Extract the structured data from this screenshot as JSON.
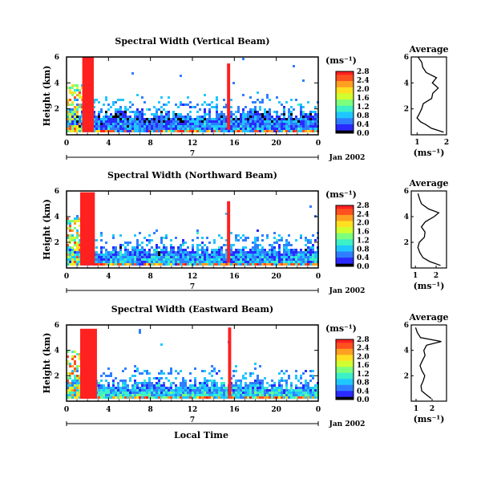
{
  "panels": [
    {
      "title": "Spectral Width (Vertical Beam)",
      "ylabel": "Height (km)",
      "yticks": [
        "2",
        "4",
        "6"
      ],
      "xticks": [
        "0",
        "4",
        "8",
        "12",
        "16",
        "20",
        "0"
      ],
      "day_label": "7",
      "date_label": "Jan 2002",
      "colorbar_unit": "(ms⁻¹)",
      "colorbar_ticks": [
        "0.0",
        "0.4",
        "0.8",
        "1.2",
        "1.6",
        "2.0",
        "2.4",
        "2.8"
      ],
      "avg_title": "Average",
      "avg_xticks": [
        "1",
        "2"
      ],
      "avg_yticks": [
        "2",
        "4",
        "6"
      ],
      "avg_xlabel": "(ms⁻¹)"
    },
    {
      "title": "Spectral Width (Northward Beam)",
      "ylabel": "Height (km)",
      "yticks": [
        "2",
        "4",
        "6"
      ],
      "xticks": [
        "0",
        "4",
        "8",
        "12",
        "16",
        "20",
        "0"
      ],
      "day_label": "7",
      "date_label": "Jan 2002",
      "colorbar_unit": "(ms⁻¹)",
      "colorbar_ticks": [
        "0.0",
        "0.4",
        "0.8",
        "1.2",
        "1.6",
        "2.0",
        "2.4",
        "2.8"
      ],
      "avg_title": "Average",
      "avg_xticks": [
        "1",
        "2"
      ],
      "avg_yticks": [
        "2",
        "4",
        "6"
      ],
      "avg_xlabel": "(ms⁻¹)"
    },
    {
      "title": "Spectral Width (Eastward Beam)",
      "ylabel": "Height (km)",
      "yticks": [
        "2",
        "4",
        "6"
      ],
      "xticks": [
        "0",
        "4",
        "8",
        "12",
        "16",
        "20",
        "0"
      ],
      "day_label": "7",
      "date_label": "Jan 2002",
      "colorbar_unit": "(ms⁻¹)",
      "colorbar_ticks": [
        "0.0",
        "0.4",
        "0.8",
        "1.2",
        "1.6",
        "2.0",
        "2.4",
        "2.8"
      ],
      "avg_title": "Average",
      "avg_xticks": [
        "1",
        "2"
      ],
      "avg_yticks": [
        "2",
        "4",
        "6"
      ],
      "avg_xlabel": "(ms⁻¹)"
    }
  ],
  "bottom_xlabel": "Local Time",
  "colors": {
    "scale": [
      "#000000",
      "#2a2aff",
      "#2f7fff",
      "#1ec8ff",
      "#3cf0c8",
      "#7cff7c",
      "#d0ff30",
      "#ffe020",
      "#ffa020",
      "#ff5020",
      "#ff2020"
    ]
  },
  "chart_data": [
    {
      "type": "heatmap",
      "title": "Spectral Width (Vertical Beam)",
      "xlabel": "Local Time",
      "ylabel": "Height (km)",
      "xlim": [
        0,
        24
      ],
      "ylim": [
        0,
        6
      ],
      "colorbar_range": [
        0,
        2.8
      ],
      "colorbar_label": "(ms⁻¹)",
      "features": [
        {
          "x": [
            1.5,
            2.6
          ],
          "y": [
            0.2,
            6.0
          ],
          "value": 2.8
        },
        {
          "x": [
            15.3,
            15.6
          ],
          "y": [
            0.4,
            5.5
          ],
          "value": 2.8
        },
        {
          "x": [
            0,
            24
          ],
          "y": [
            0.2,
            1.7
          ],
          "value": 0.6
        }
      ],
      "average_profile": {
        "xlim": [
          0.8,
          2.0
        ],
        "height": [
          0.2,
          0.5,
          0.8,
          1.0,
          1.3,
          1.6,
          2.0,
          2.4,
          2.8,
          3.2,
          3.6,
          4.0,
          4.4,
          4.8,
          5.2,
          5.6,
          6.0
        ],
        "width": [
          1.9,
          1.5,
          1.3,
          1.1,
          1.0,
          1.05,
          1.15,
          1.2,
          1.5,
          1.55,
          1.7,
          1.5,
          1.65,
          1.3,
          1.2,
          1.15,
          1.05
        ]
      }
    },
    {
      "type": "heatmap",
      "title": "Spectral Width (Northward Beam)",
      "xlabel": "Local Time",
      "ylabel": "Height (km)",
      "xlim": [
        0,
        24
      ],
      "ylim": [
        0,
        6
      ],
      "colorbar_range": [
        0,
        2.8
      ],
      "colorbar_label": "(ms⁻¹)",
      "features": [
        {
          "x": [
            1.3,
            2.7
          ],
          "y": [
            0.2,
            5.9
          ],
          "value": 2.8
        },
        {
          "x": [
            15.3,
            15.6
          ],
          "y": [
            0.4,
            5.2
          ],
          "value": 2.8
        },
        {
          "x": [
            0,
            24
          ],
          "y": [
            0.2,
            1.6
          ],
          "value": 0.8
        }
      ],
      "average_profile": {
        "xlim": [
          0.8,
          2.5
        ],
        "height": [
          0.2,
          0.5,
          0.8,
          1.2,
          1.6,
          2.0,
          2.4,
          2.8,
          3.2,
          3.6,
          4.0,
          4.3,
          4.6,
          5.0,
          5.4,
          5.8
        ],
        "width": [
          2.2,
          1.7,
          1.4,
          1.2,
          1.15,
          1.2,
          1.4,
          1.5,
          1.3,
          1.5,
          1.9,
          2.1,
          1.6,
          1.3,
          1.2,
          1.1
        ]
      }
    },
    {
      "type": "heatmap",
      "title": "Spectral Width (Eastward Beam)",
      "xlabel": "Local Time",
      "ylabel": "Height (km)",
      "xlim": [
        0,
        24
      ],
      "ylim": [
        0,
        6
      ],
      "colorbar_range": [
        0,
        2.8
      ],
      "colorbar_label": "(ms⁻¹)",
      "features": [
        {
          "x": [
            1.3,
            2.9
          ],
          "y": [
            0.2,
            5.7
          ],
          "value": 2.8
        },
        {
          "x": [
            15.4,
            15.7
          ],
          "y": [
            0.4,
            5.8
          ],
          "value": 2.8
        },
        {
          "x": [
            0,
            24
          ],
          "y": [
            0.2,
            1.5
          ],
          "value": 1.0
        }
      ],
      "average_profile": {
        "xlim": [
          0.7,
          2.9
        ],
        "height": [
          0.2,
          0.5,
          0.8,
          1.2,
          1.6,
          2.0,
          2.4,
          2.8,
          3.2,
          3.6,
          4.0,
          4.4,
          4.7,
          5.0,
          5.4,
          5.8
        ],
        "width": [
          2.0,
          1.6,
          1.4,
          1.3,
          1.4,
          1.5,
          1.35,
          1.3,
          1.4,
          1.6,
          1.5,
          1.7,
          2.6,
          1.3,
          1.1,
          1.0
        ]
      }
    }
  ]
}
